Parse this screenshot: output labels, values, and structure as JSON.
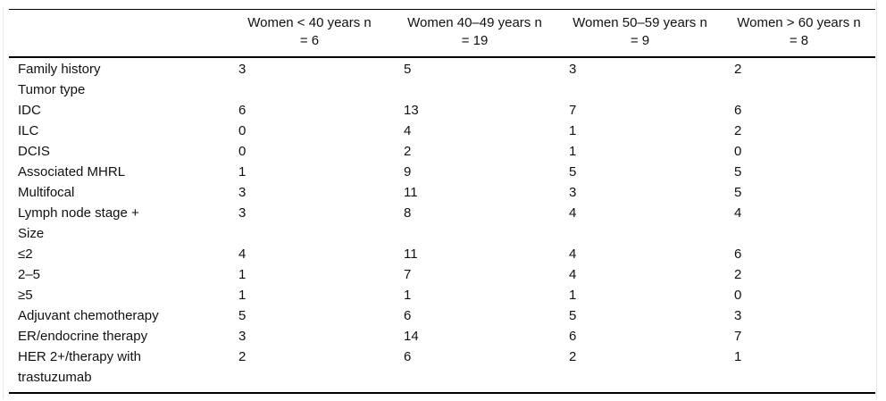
{
  "table": {
    "header": {
      "row_label_header": "",
      "columns": [
        {
          "line1": "Women < 40 years n",
          "line2": "= 6"
        },
        {
          "line1": "Women 40–49 years n",
          "line2": "= 19"
        },
        {
          "line1": "Women 50–59 years n",
          "line2": "= 9"
        },
        {
          "line1": "Women > 60 years n",
          "line2": "= 8"
        }
      ]
    },
    "rows": [
      {
        "label": "Family history",
        "values": [
          "3",
          "5",
          "3",
          "2"
        ]
      },
      {
        "label": "Tumor type",
        "values": [
          "",
          "",
          "",
          ""
        ]
      },
      {
        "label": "IDC",
        "values": [
          "6",
          "13",
          "7",
          "6"
        ]
      },
      {
        "label": "ILC",
        "values": [
          "0",
          "4",
          "1",
          "2"
        ]
      },
      {
        "label": "DCIS",
        "values": [
          "0",
          "2",
          "1",
          "0"
        ]
      },
      {
        "label": "Associated MHRL",
        "values": [
          "1",
          "9",
          "5",
          "5"
        ]
      },
      {
        "label": "Multifocal",
        "values": [
          "3",
          "11",
          "3",
          "5"
        ]
      },
      {
        "label": "Lymph node stage +",
        "values": [
          "3",
          "8",
          "4",
          "4"
        ]
      },
      {
        "label": "Size",
        "values": [
          "",
          "",
          "",
          ""
        ]
      },
      {
        "label": "≤2",
        "values": [
          "4",
          "11",
          "4",
          "6"
        ]
      },
      {
        "label": "2–5",
        "values": [
          "1",
          "7",
          "4",
          "2"
        ]
      },
      {
        "label": "≥5",
        "values": [
          "1",
          "1",
          "1",
          "0"
        ]
      },
      {
        "label": "Adjuvant chemotherapy",
        "values": [
          "5",
          "6",
          "5",
          "3"
        ]
      },
      {
        "label": "ER/endocrine therapy",
        "values": [
          "3",
          "14",
          "6",
          "7"
        ]
      },
      {
        "label": "HER 2+/therapy with trastuzumab",
        "values": [
          "2",
          "6",
          "2",
          "1"
        ]
      }
    ]
  },
  "colors": {
    "text": "#111111",
    "rule": "#000000",
    "frame_edge": "#e7e7e7",
    "background": "#ffffff"
  }
}
